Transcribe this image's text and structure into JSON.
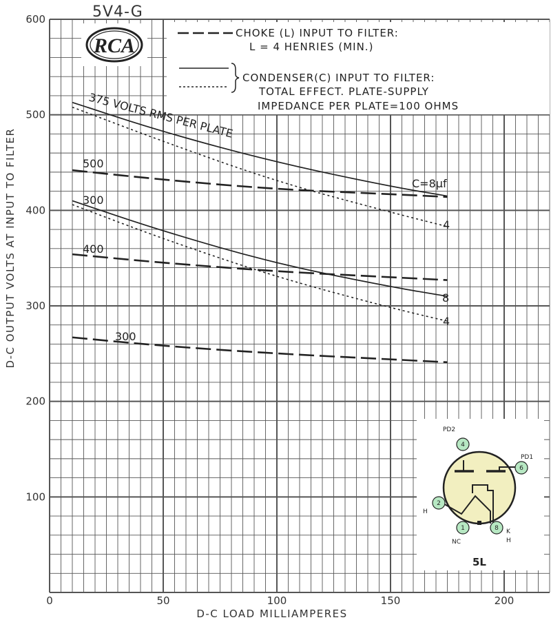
{
  "tube_type": "5V4-G",
  "logo": {
    "text": "RCA"
  },
  "legend": {
    "choke_line1": "CHOKE (L) INPUT TO FILTER:",
    "choke_line2": "L = 4 HENRIES (MIN.)",
    "cond_line1": "CONDENSER(C) INPUT TO FILTER:",
    "cond_line2": "TOTAL EFFECT. PLATE-SUPPLY",
    "cond_line3": "IMPEDANCE PER PLATE=100 OHMS"
  },
  "base_diagram": {
    "code": "5L",
    "pins": [
      {
        "num": "4",
        "label": "PD2"
      },
      {
        "num": "6",
        "label": "PD1"
      },
      {
        "num": "2",
        "label": "H"
      },
      {
        "num": "1",
        "label": "NC"
      },
      {
        "num": "8",
        "label": "K"
      },
      {
        "num": "8",
        "label": "H"
      }
    ]
  },
  "colors": {
    "grid": "#555555",
    "curve": "#222222",
    "socket_fill": "#f2efc0",
    "pin_fill": "#b7e8c3"
  },
  "chart_data": {
    "type": "line",
    "xlabel": "D-C LOAD MILLIAMPERES",
    "ylabel": "D-C OUTPUT VOLTS AT INPUT TO FILTER",
    "xlim": [
      0,
      220
    ],
    "ylim": [
      0,
      600
    ],
    "x_ticks": [
      0,
      50,
      100,
      150,
      200
    ],
    "y_ticks": [
      100,
      200,
      300,
      400,
      500,
      600
    ],
    "grid": true,
    "series": [
      {
        "style": "solid",
        "input": "condenser",
        "label": "375 VOLTS RMS PER PLATE",
        "end_label": "C=8μf",
        "x": [
          10,
          50,
          100,
          150,
          175
        ],
        "y": [
          513,
          482,
          450,
          425,
          415
        ]
      },
      {
        "style": "dotted",
        "input": "condenser",
        "label": "",
        "end_label": "4",
        "x": [
          10,
          50,
          100,
          150,
          175
        ],
        "y": [
          508,
          472,
          430,
          398,
          383
        ]
      },
      {
        "style": "dashed",
        "input": "choke",
        "label": "500",
        "end_label": "",
        "x": [
          10,
          50,
          100,
          150,
          175
        ],
        "y": [
          442,
          432,
          422,
          417,
          414
        ]
      },
      {
        "style": "solid",
        "input": "condenser",
        "label": "300",
        "end_label": "8",
        "x": [
          10,
          50,
          100,
          150,
          175
        ],
        "y": [
          410,
          378,
          344,
          320,
          310
        ]
      },
      {
        "style": "dotted",
        "input": "condenser",
        "label": "",
        "end_label": "4",
        "x": [
          10,
          50,
          100,
          150,
          175
        ],
        "y": [
          406,
          370,
          330,
          298,
          284
        ]
      },
      {
        "style": "dashed",
        "input": "choke",
        "label": "400",
        "end_label": "",
        "x": [
          10,
          50,
          100,
          150,
          175
        ],
        "y": [
          354,
          345,
          336,
          330,
          327
        ]
      },
      {
        "style": "dashed",
        "input": "choke",
        "label": "300",
        "end_label": "",
        "x": [
          10,
          50,
          100,
          150,
          175
        ],
        "y": [
          267,
          258,
          250,
          244,
          241
        ]
      }
    ]
  }
}
